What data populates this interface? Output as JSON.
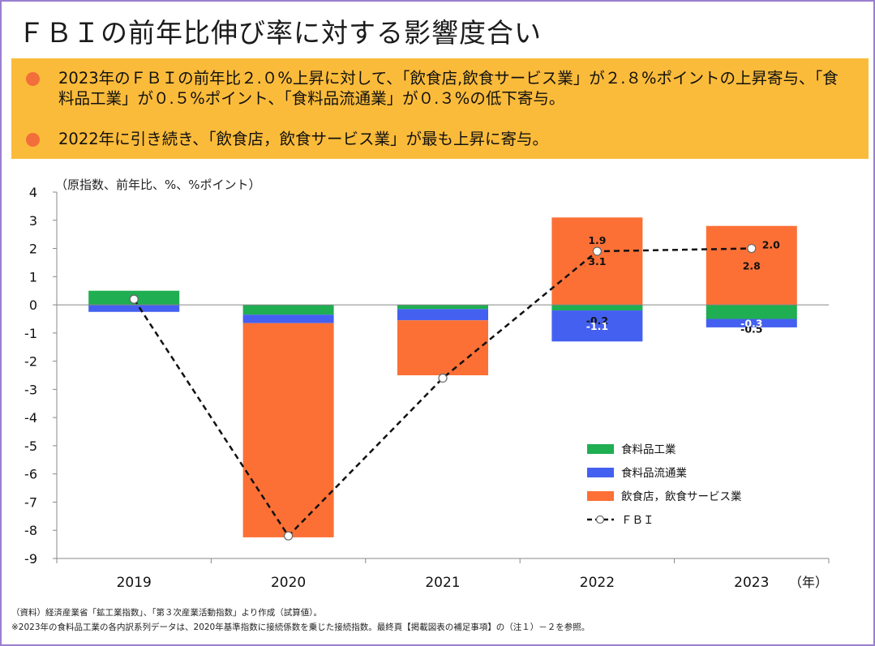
{
  "title": "ＦＢＩの前年比伸び率に対する影響度合い",
  "summary": {
    "bullet1": "2023年のＦＢＩの前年比２.０%上昇に対して、「飲食店,飲食サービス業」が２.８%ポイントの上昇寄与、「食料品工業」が０.５%ポイント、「食料品流通業」が０.３%の低下寄与。",
    "bullet2": "2022年に引き続き、「飲食店，飲食サービス業」が最も上昇に寄与。"
  },
  "colors": {
    "background_box": "#fbbb3a",
    "bullet": "#f26e3a",
    "food_manufacturing": "#1fae52",
    "food_distribution": "#4460f0",
    "restaurant_services": "#fc7036",
    "fbi_line": "#111111"
  },
  "chart_data": {
    "type": "bar",
    "stacked": true,
    "unit_label": "（原指数、前年比、%、%ポイント）",
    "xlabel": "（年）",
    "categories": [
      "2019",
      "2020",
      "2021",
      "2022",
      "2023"
    ],
    "ylim": [
      -9,
      4
    ],
    "yticks": [
      4,
      3,
      2,
      1,
      0,
      -1,
      -2,
      -3,
      -4,
      -5,
      -6,
      -7,
      -8,
      -9
    ],
    "series": [
      {
        "name": "食料品工業",
        "key": "food_manufacturing",
        "values": [
          0.5,
          -0.35,
          -0.15,
          -0.2,
          -0.5
        ],
        "labels": [
          "",
          "",
          "",
          "-0.2",
          "-0.5"
        ]
      },
      {
        "name": "食料品流通業",
        "key": "food_distribution",
        "values": [
          -0.25,
          -0.3,
          -0.4,
          -1.1,
          -0.3
        ],
        "labels": [
          "",
          "",
          "",
          "-1.1",
          "-0.3"
        ]
      },
      {
        "name": "飲食店，飲食サービス業",
        "key": "restaurant_services",
        "values": [
          0.0,
          -7.6,
          -1.95,
          3.1,
          2.8
        ],
        "labels": [
          "",
          "",
          "",
          "3.1",
          "2.8"
        ]
      }
    ],
    "line": {
      "name": "ＦＢＩ",
      "values": [
        0.2,
        -8.2,
        -2.6,
        1.9,
        2.0
      ],
      "labels": [
        "",
        "",
        "",
        "1.9",
        "2.0"
      ]
    },
    "legend": [
      "食料品工業",
      "食料品流通業",
      "飲食店，飲食サービス業",
      "ＦＢＩ"
    ],
    "legend_position": "bottom-right"
  },
  "notes": {
    "source": "（資料）経済産業省「鉱工業指数」、「第３次産業活動指数」より作成（試算値）。",
    "footnote": "※2023年の食料品工業の各内訳系列データは、2020年基準指数に接続係数を乗じた接続指数。最終頁【掲載図表の補足事項】の（注１）－２を参照。"
  }
}
